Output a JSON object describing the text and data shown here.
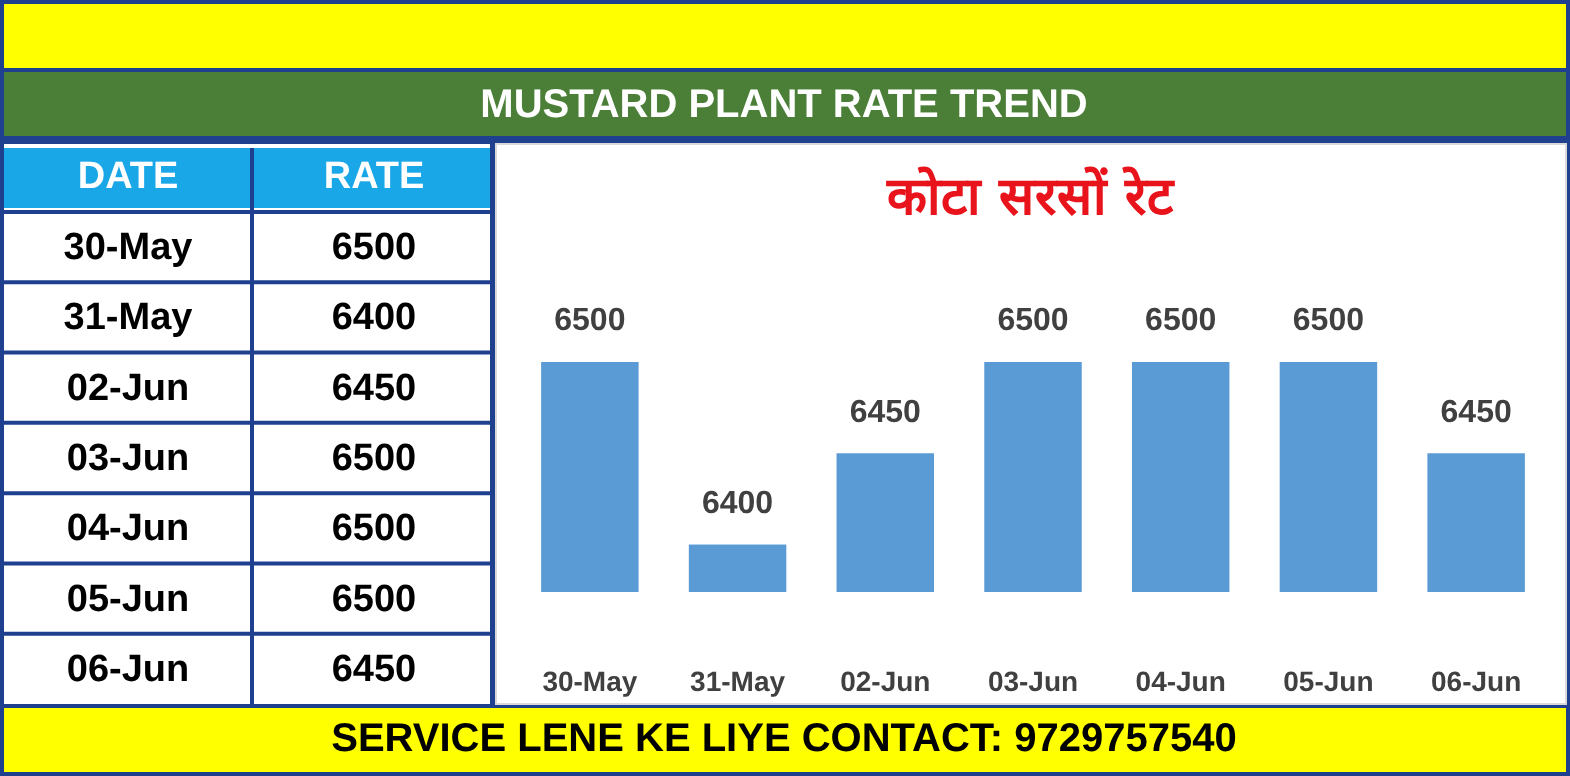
{
  "chart_data": [
    {
      "type": "other",
      "title": "MUSTARD PLANT RATE TREND",
      "categories": [
        "30-May",
        "31-May",
        "02-Jun",
        "03-Jun",
        "04-Jun",
        "05-Jun",
        "06-Jun"
      ],
      "values": [
        6500,
        6400,
        6450,
        6500,
        6500,
        6500,
        6450
      ],
      "data_labels": true,
      "annotations": [
        "DATE",
        "RATE",
        "SERVICE LENE KE LIYE CONTACT: 9729757540"
      ]
    },
    {
      "type": "bar",
      "title": "कोटा सरसों रेट",
      "categories": [
        "30-May",
        "31-May",
        "02-Jun",
        "03-Jun",
        "04-Jun",
        "05-Jun",
        "06-Jun"
      ],
      "values": [
        6500,
        6400,
        6450,
        6500,
        6500,
        6500,
        6450
      ],
      "color": "#5b9bd5",
      "ylim": [
        6374,
        6500
      ],
      "data_labels": true
    }
  ]
}
